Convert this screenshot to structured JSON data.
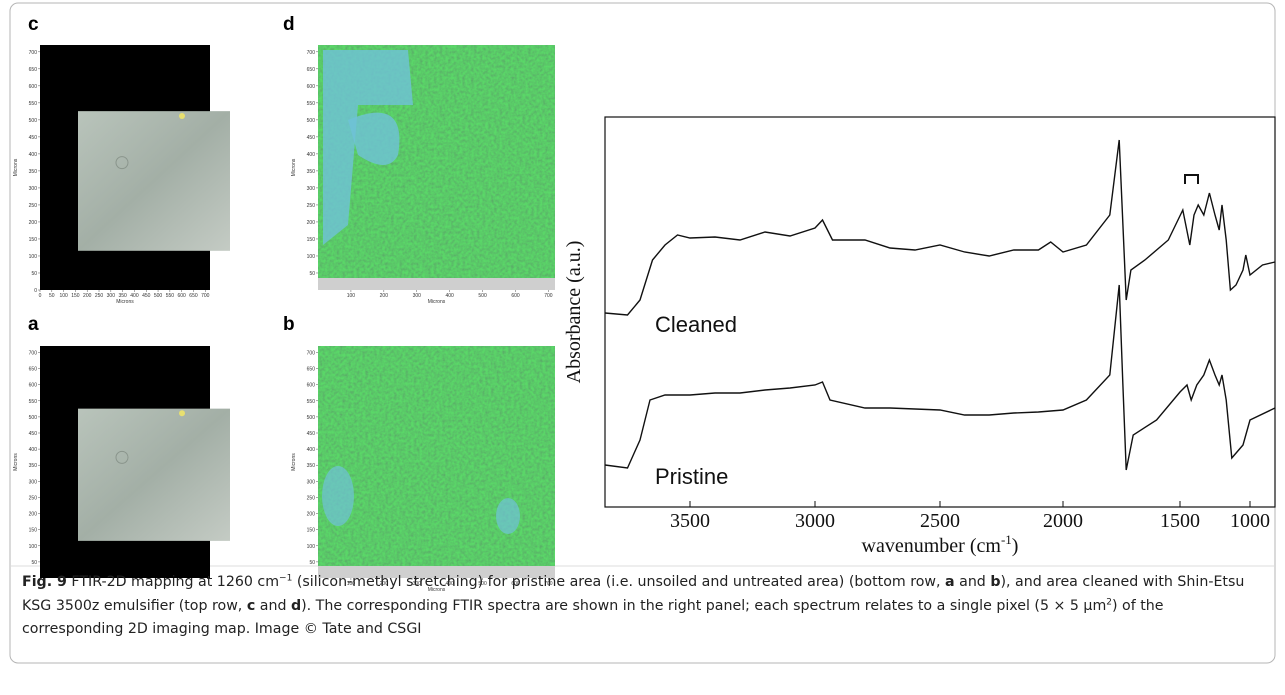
{
  "panels": [
    {
      "label": "c",
      "kind": "photo",
      "y_label": "Microns",
      "x_label": "Microns",
      "xlim": [
        0,
        720
      ],
      "ylim": [
        0,
        720
      ],
      "yticks": [
        0,
        50,
        100,
        150,
        200,
        250,
        300,
        350,
        400,
        450,
        500,
        550,
        600,
        650,
        700
      ],
      "xticks": [
        0,
        50,
        100,
        150,
        200,
        250,
        300,
        350,
        400,
        450,
        500,
        550,
        600,
        650,
        700
      ]
    },
    {
      "label": "d",
      "kind": "map",
      "y_label": "Microns",
      "x_label": "Microns",
      "xlim": [
        0,
        720
      ],
      "ylim": [
        0,
        720
      ],
      "yticks": [
        50,
        100,
        150,
        200,
        250,
        300,
        350,
        400,
        450,
        500,
        550,
        600,
        650,
        700
      ],
      "xticks": [
        100,
        200,
        300,
        400,
        500,
        600,
        700
      ]
    },
    {
      "label": "a",
      "kind": "photo",
      "y_label": "Microns",
      "xlim": [
        0,
        720
      ],
      "ylim": [
        0,
        720
      ],
      "yticks": [
        50,
        100,
        150,
        200,
        250,
        300,
        350,
        400,
        450,
        500,
        550,
        600,
        650,
        700
      ]
    },
    {
      "label": "b",
      "kind": "map",
      "y_label": "Microns",
      "x_label": "Microns",
      "xlim": [
        0,
        720
      ],
      "ylim": [
        0,
        720
      ],
      "yticks": [
        50,
        100,
        150,
        200,
        250,
        300,
        350,
        400,
        450,
        500,
        550,
        600,
        650,
        700
      ],
      "xticks": [
        100,
        200,
        300,
        400,
        500,
        600,
        700
      ]
    }
  ],
  "chart_data": {
    "type": "line",
    "y_label": "Absorbance (a.u.)",
    "x_label": "wavenumber (cm",
    "x_label_sup": "-1",
    "x_label_end": ")",
    "xlim": [
      3840,
      900
    ],
    "ylim": [
      0,
      39
    ],
    "xticks": [
      3500,
      3000,
      2500,
      2000,
      1500,
      1000
    ],
    "series": [
      {
        "name": "Cleaned",
        "color": "#111111",
        "x": [
          3840,
          3750,
          3700,
          3650,
          3600,
          3550,
          3500,
          3400,
          3300,
          3200,
          3100,
          3000,
          2970,
          2930,
          2800,
          2700,
          2600,
          2500,
          2400,
          2300,
          2200,
          2100,
          2050,
          2000,
          1900,
          1800,
          1760,
          1745,
          1730,
          1710,
          1650,
          1550,
          1480,
          1430,
          1400,
          1370,
          1330,
          1290,
          1250,
          1220,
          1200,
          1170,
          1140,
          1100,
          1050,
          1030,
          1000,
          950,
          900
        ],
        "values": [
          19.4,
          19.2,
          20.7,
          24.7,
          26.2,
          27.2,
          26.9,
          27.0,
          26.7,
          27.5,
          27.1,
          27.9,
          28.7,
          26.7,
          26.7,
          25.9,
          25.7,
          26.2,
          25.5,
          25.1,
          25.7,
          25.7,
          26.5,
          25.5,
          26.2,
          29.2,
          36.7,
          28.7,
          20.7,
          23.7,
          24.7,
          26.7,
          29.7,
          26.2,
          29.2,
          30.2,
          29.2,
          31.4,
          29.2,
          27.7,
          30.2,
          26.7,
          21.7,
          22.2,
          23.7,
          25.2,
          23.2,
          24.2,
          24.5
        ]
      },
      {
        "name": "Pristine",
        "color": "#111111",
        "x": [
          3840,
          3750,
          3700,
          3660,
          3600,
          3500,
          3400,
          3300,
          3200,
          3100,
          3000,
          2970,
          2940,
          2800,
          2700,
          2500,
          2400,
          2300,
          2200,
          2100,
          2000,
          1900,
          1800,
          1760,
          1745,
          1730,
          1700,
          1600,
          1500,
          1450,
          1420,
          1380,
          1330,
          1290,
          1250,
          1220,
          1200,
          1170,
          1130,
          1050,
          1000,
          900
        ],
        "values": [
          4.2,
          3.9,
          6.7,
          10.7,
          11.2,
          11.2,
          11.4,
          11.4,
          11.7,
          11.9,
          12.2,
          12.5,
          10.7,
          9.9,
          9.9,
          9.7,
          9.2,
          9.2,
          9.4,
          9.5,
          9.7,
          10.7,
          13.2,
          22.2,
          12.7,
          3.7,
          7.2,
          8.7,
          11.5,
          12.2,
          10.7,
          12.2,
          13.2,
          14.7,
          13.2,
          12.2,
          13.2,
          10.7,
          4.9,
          6.2,
          8.7,
          9.9
        ]
      }
    ]
  },
  "caption": [
    {
      "b": "Fig. 9"
    },
    {
      "t": "  FTIR-2D mapping at 1260 cm"
    },
    {
      "sup": "−1"
    },
    {
      "t": " (silicon-methyl stretching) for pristine area (i.e. unsoiled and untreated area) (bottom row, "
    },
    {
      "b": "a"
    },
    {
      "t": " and "
    },
    {
      "b": "b"
    },
    {
      "t": "), and area cleaned with Shin-Etsu KSG 3500z emulsifier (top row, "
    },
    {
      "b": "c"
    },
    {
      "t": " and "
    },
    {
      "b": "d"
    },
    {
      "t": "). The corresponding FTIR spectra are shown in the right panel; each spectrum relates to a single pixel (5 × 5 μm"
    },
    {
      "sup": "2"
    },
    {
      "t": ") of the corresponding 2D imaging map. Image © Tate and CSGI"
    }
  ]
}
